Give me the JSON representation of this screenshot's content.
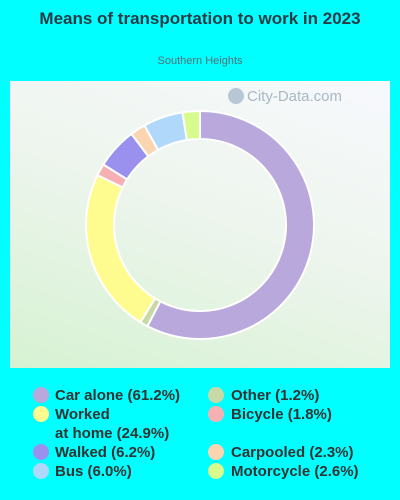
{
  "chart_data": {
    "type": "pie",
    "title": "Means of transportation to work in 2023",
    "subtitle": "Southern Heights",
    "watermark": "City-Data.com",
    "slices": [
      {
        "label": "Car alone",
        "value": 61.2,
        "legend": "Car alone (61.2%)",
        "color": "#b9a8dc"
      },
      {
        "label": "Other",
        "value": 1.2,
        "legend": "Other (1.2%)",
        "color": "#c9d9a6"
      },
      {
        "label": "Worked at home",
        "value": 24.9,
        "legend_line1": "Worked",
        "legend_line2": "at home (24.9%)",
        "color": "#fffc8f"
      },
      {
        "label": "Bicycle",
        "value": 1.8,
        "legend": "Bicycle (1.8%)",
        "color": "#f6b0b4"
      },
      {
        "label": "Walked",
        "value": 6.2,
        "legend": "Walked (6.2%)",
        "color": "#9a91ef"
      },
      {
        "label": "Carpooled",
        "value": 2.3,
        "legend": "Carpooled (2.3%)",
        "color": "#fbd5b2"
      },
      {
        "label": "Bus",
        "value": 6.0,
        "legend": "Bus (6.0%)",
        "color": "#b0d8fb"
      },
      {
        "label": "Motorcycle",
        "value": 2.6,
        "legend": "Motorcycle (2.6%)",
        "color": "#d8fb8e"
      }
    ]
  }
}
